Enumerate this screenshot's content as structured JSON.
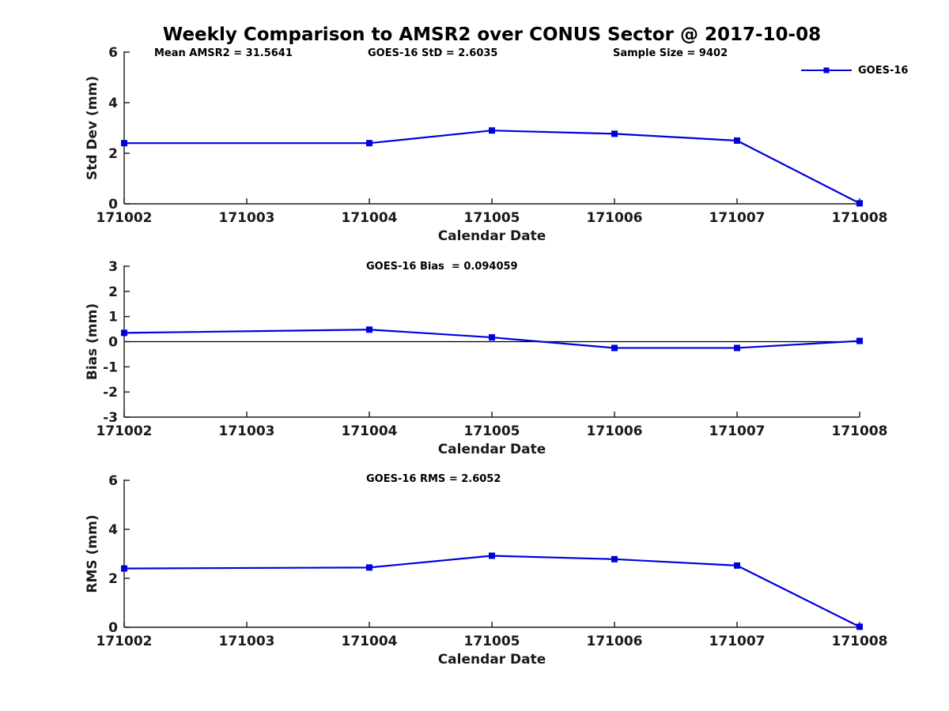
{
  "figure": {
    "title": "Weekly Comparison to AMSR2 over CONUS Sector @ 2017-10-08",
    "annotations": {
      "mean_amsr2": "Mean AMSR2 = 31.5641",
      "goes16_std": "GOES-16 StD = 2.6035",
      "sample_size": "Sample Size = 9402"
    },
    "legend": {
      "label": "GOES-16",
      "color": "#0000dd",
      "marker": "square-icon"
    }
  },
  "chart_data": [
    {
      "type": "line",
      "name": "std-dev",
      "ylabel": "Std Dev (mm)",
      "xlabel": "Calendar Date",
      "x_ticks": [
        "171002",
        "171003",
        "171004",
        "171005",
        "171006",
        "171007",
        "171008"
      ],
      "ylim": [
        0,
        6
      ],
      "yticks": [
        6,
        4,
        2,
        0
      ],
      "zero_line": false,
      "grid": false,
      "legend_position": "top-right",
      "series": [
        {
          "name": "GOES-16",
          "color": "#0000dd",
          "marker": "square",
          "x": [
            "171002",
            "171004",
            "171005",
            "171006",
            "171007",
            "171008"
          ],
          "values": [
            2.4,
            2.4,
            2.9,
            2.77,
            2.5,
            0.02
          ]
        }
      ]
    },
    {
      "type": "line",
      "name": "bias",
      "stat_label": "GOES-16 Bias  = 0.094059",
      "ylabel": "Bias (mm)",
      "xlabel": "Calendar Date",
      "x_ticks": [
        "171002",
        "171003",
        "171004",
        "171005",
        "171006",
        "171007",
        "171008"
      ],
      "ylim": [
        -3,
        3
      ],
      "yticks": [
        3,
        2,
        1,
        0,
        -1,
        -2,
        -3
      ],
      "zero_line": true,
      "grid": false,
      "series": [
        {
          "name": "GOES-16",
          "color": "#0000dd",
          "marker": "square",
          "x": [
            "171002",
            "171004",
            "171005",
            "171006",
            "171007",
            "171008"
          ],
          "values": [
            0.35,
            0.48,
            0.17,
            -0.25,
            -0.25,
            0.03
          ]
        }
      ]
    },
    {
      "type": "line",
      "name": "rms",
      "stat_label": "GOES-16 RMS = 2.6052",
      "ylabel": "RMS (mm)",
      "xlabel": "Calendar Date",
      "x_ticks": [
        "171002",
        "171003",
        "171004",
        "171005",
        "171006",
        "171007",
        "171008"
      ],
      "ylim": [
        0,
        6
      ],
      "yticks": [
        6,
        4,
        2,
        0
      ],
      "zero_line": false,
      "grid": false,
      "series": [
        {
          "name": "GOES-16",
          "color": "#0000dd",
          "marker": "square",
          "x": [
            "171002",
            "171004",
            "171005",
            "171006",
            "171007",
            "171008"
          ],
          "values": [
            2.4,
            2.44,
            2.92,
            2.78,
            2.52,
            0.02
          ]
        }
      ]
    }
  ]
}
